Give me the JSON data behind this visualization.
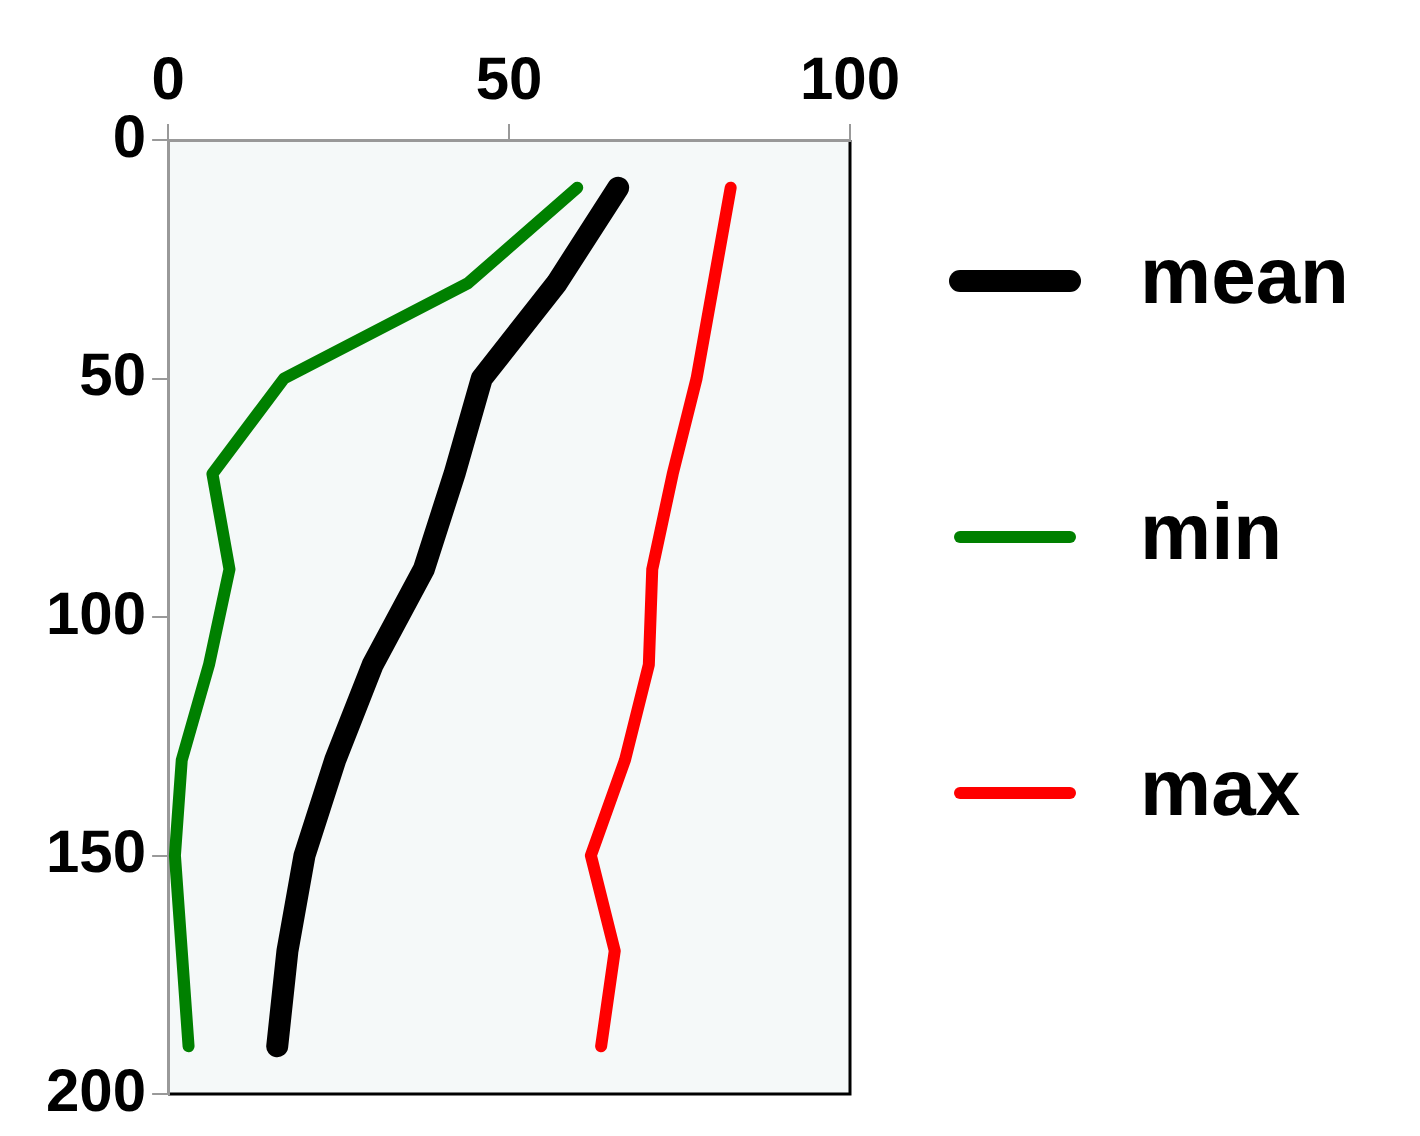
{
  "chart_data": {
    "type": "line",
    "legend": "right",
    "grid": false,
    "marker": "none",
    "xlim": [
      0,
      100
    ],
    "xticks": [
      0,
      50,
      100
    ],
    "ylim": [
      200,
      0
    ],
    "yticks": [
      0,
      50,
      100,
      150,
      200
    ],
    "series": [
      {
        "name": "mean",
        "color": "#000000",
        "x": [
          66,
          57,
          46,
          42,
          37.5,
          30,
          24.5,
          20,
          17.5,
          16
        ],
        "values": [
          10,
          30,
          50,
          70,
          90,
          110,
          130,
          150,
          170,
          190
        ]
      },
      {
        "name": "min",
        "color": "#008000",
        "x": [
          60,
          44,
          17,
          6.5,
          9,
          6,
          2,
          1,
          2,
          3
        ],
        "values": [
          10,
          30,
          50,
          70,
          90,
          110,
          130,
          150,
          170,
          190
        ]
      },
      {
        "name": "max",
        "color": "#ff0000",
        "x": [
          82.5,
          80,
          77.5,
          74,
          71,
          70.5,
          67,
          62,
          65.5,
          63.5
        ],
        "values": [
          10,
          30,
          50,
          70,
          90,
          110,
          130,
          150,
          170,
          190
        ]
      }
    ]
  }
}
